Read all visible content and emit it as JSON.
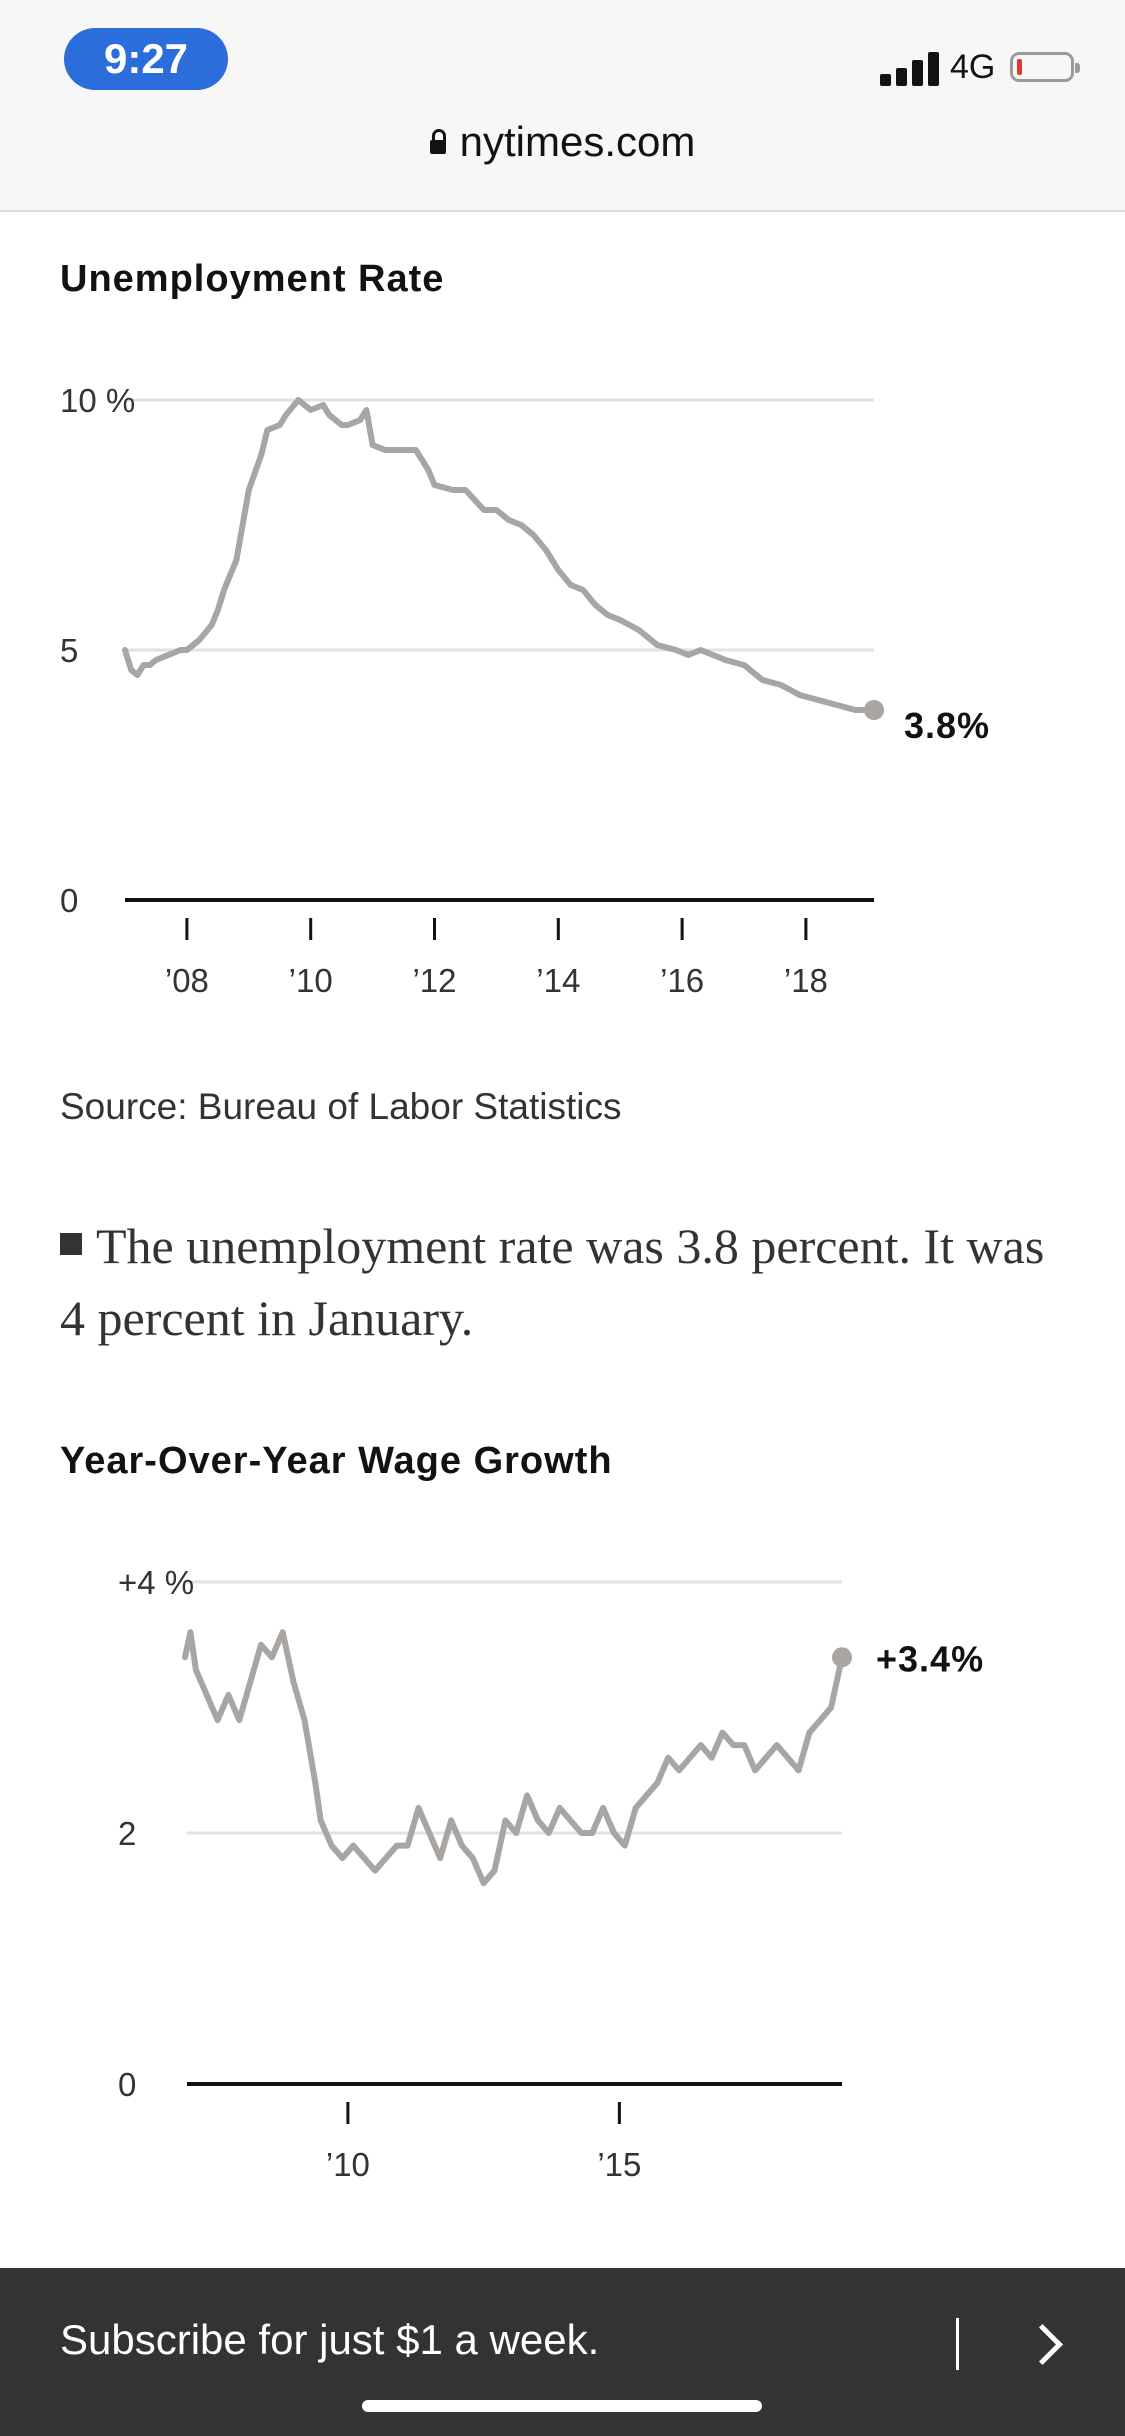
{
  "status": {
    "time": "9:27",
    "network": "4G"
  },
  "browser": {
    "url": "nytimes.com"
  },
  "chart1": {
    "title": "Unemployment Rate",
    "y_ticks": [
      "10 %",
      "5",
      "0"
    ],
    "x_ticks": [
      "’08",
      "’10",
      "’12",
      "’14",
      "’16",
      "’18"
    ],
    "end_label": "3.8%"
  },
  "source": "Source: Bureau of Labor Statistics",
  "summary": "The unemployment rate was 3.8 percent. It was 4 percent in January.",
  "chart2": {
    "title": "Year-Over-Year Wage Growth",
    "y_ticks": [
      "+4 %",
      "2",
      "0"
    ],
    "x_ticks": [
      "’10",
      "’15"
    ],
    "end_label": "+3.4%"
  },
  "subscribe": {
    "text": "Subscribe for just $1 a week."
  },
  "colors": {
    "line": "#a8a5a2",
    "grid": "#e2e2e2",
    "axis": "#121212",
    "bar": "#333333",
    "pill": "#2c6ddc"
  },
  "chart_data": [
    {
      "type": "line",
      "title": "Unemployment Rate",
      "xlim": [
        2007.0,
        2019.1
      ],
      "ylim": [
        0,
        10
      ],
      "x": [
        2007.0,
        2007.1,
        2007.2,
        2007.3,
        2007.4,
        2007.5,
        2007.7,
        2007.9,
        2008.0,
        2008.2,
        2008.4,
        2008.5,
        2008.6,
        2008.8,
        2008.9,
        2009.0,
        2009.2,
        2009.3,
        2009.5,
        2009.6,
        2009.8,
        2009.9,
        2010.0,
        2010.2,
        2010.3,
        2010.5,
        2010.6,
        2010.8,
        2010.9,
        2011.0,
        2011.2,
        2011.4,
        2011.5,
        2011.7,
        2011.9,
        2012.0,
        2012.3,
        2012.5,
        2012.8,
        2013.0,
        2013.2,
        2013.4,
        2013.6,
        2013.8,
        2014.0,
        2014.2,
        2014.4,
        2014.6,
        2014.8,
        2015.0,
        2015.3,
        2015.6,
        2015.9,
        2016.1,
        2016.3,
        2016.5,
        2016.7,
        2017.0,
        2017.3,
        2017.6,
        2017.9,
        2018.2,
        2018.5,
        2018.8,
        2019.1
      ],
      "y": [
        5.0,
        4.6,
        4.5,
        4.7,
        4.7,
        4.8,
        4.9,
        5.0,
        5.0,
        5.2,
        5.5,
        5.8,
        6.2,
        6.8,
        7.5,
        8.2,
        8.9,
        9.4,
        9.5,
        9.7,
        10.0,
        9.9,
        9.8,
        9.9,
        9.7,
        9.5,
        9.5,
        9.6,
        9.8,
        9.1,
        9.0,
        9.0,
        9.0,
        9.0,
        8.6,
        8.3,
        8.2,
        8.2,
        7.8,
        7.8,
        7.6,
        7.5,
        7.3,
        7.0,
        6.6,
        6.3,
        6.2,
        5.9,
        5.7,
        5.6,
        5.4,
        5.1,
        5.0,
        4.9,
        5.0,
        4.9,
        4.8,
        4.7,
        4.4,
        4.3,
        4.1,
        4.0,
        3.9,
        3.8,
        3.8
      ]
    },
    {
      "type": "line",
      "title": "Year-Over-Year Wage Growth",
      "xlim": [
        2007.0,
        2019.1
      ],
      "ylim": [
        0,
        4
      ],
      "x": [
        2007.0,
        2007.1,
        2007.2,
        2007.4,
        2007.6,
        2007.8,
        2008.0,
        2008.2,
        2008.4,
        2008.6,
        2008.8,
        2009.0,
        2009.2,
        2009.4,
        2009.5,
        2009.7,
        2009.9,
        2010.1,
        2010.3,
        2010.5,
        2010.7,
        2010.9,
        2011.1,
        2011.3,
        2011.5,
        2011.7,
        2011.9,
        2012.1,
        2012.3,
        2012.5,
        2012.7,
        2012.9,
        2013.1,
        2013.3,
        2013.5,
        2013.7,
        2013.9,
        2014.1,
        2014.3,
        2014.5,
        2014.7,
        2014.9,
        2015.1,
        2015.3,
        2015.5,
        2015.7,
        2015.9,
        2016.1,
        2016.3,
        2016.5,
        2016.7,
        2016.9,
        2017.1,
        2017.3,
        2017.5,
        2017.7,
        2017.9,
        2018.1,
        2018.3,
        2018.5,
        2018.7,
        2018.9,
        2019.1
      ],
      "y": [
        3.4,
        3.6,
        3.3,
        3.1,
        2.9,
        3.1,
        2.9,
        3.2,
        3.5,
        3.4,
        3.6,
        3.2,
        2.9,
        2.4,
        2.1,
        1.9,
        1.8,
        1.9,
        1.8,
        1.7,
        1.8,
        1.9,
        1.9,
        2.2,
        2.0,
        1.8,
        2.1,
        1.9,
        1.8,
        1.6,
        1.7,
        2.1,
        2.0,
        2.3,
        2.1,
        2.0,
        2.2,
        2.1,
        2.0,
        2.0,
        2.2,
        2.0,
        1.9,
        2.2,
        2.3,
        2.4,
        2.6,
        2.5,
        2.6,
        2.7,
        2.6,
        2.8,
        2.7,
        2.7,
        2.5,
        2.6,
        2.7,
        2.6,
        2.5,
        2.8,
        2.9,
        3.0,
        3.4
      ]
    }
  ]
}
